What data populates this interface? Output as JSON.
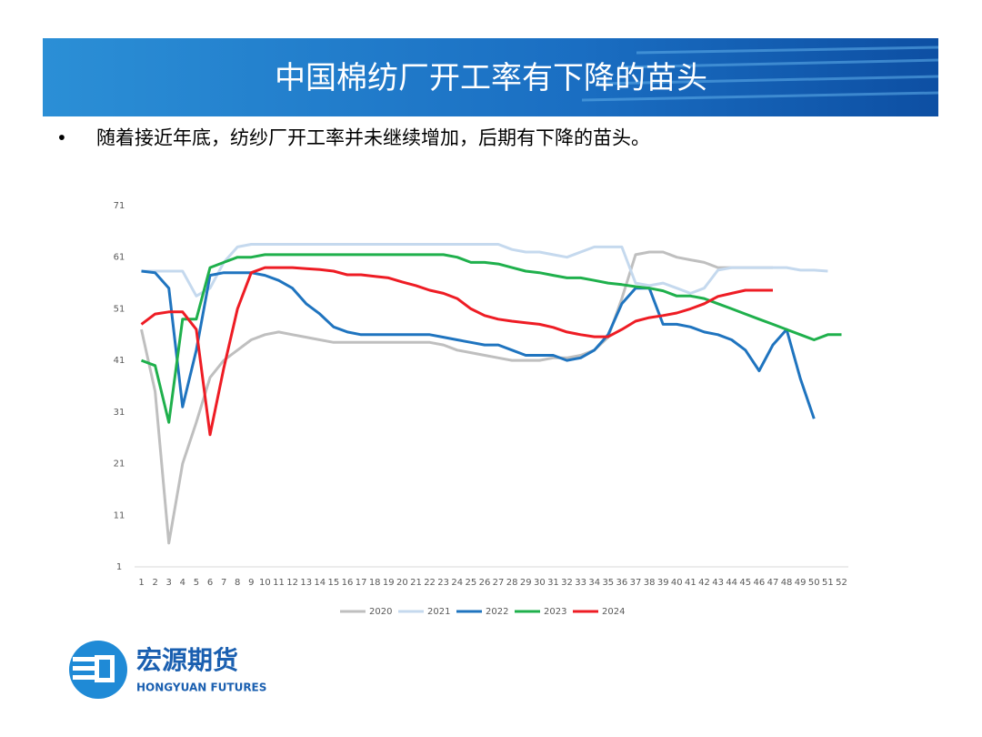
{
  "header": {
    "title": "中国棉纺厂开工率有下降的苗头"
  },
  "bullet": "随着接近年底，纺纱厂开工率并未继续增加，后期有下降的苗头。",
  "logo": {
    "name": "宏源期货",
    "english": "HONGYUAN FUTURES"
  },
  "chart_data": {
    "type": "line",
    "categories": [
      1,
      2,
      3,
      4,
      5,
      6,
      7,
      8,
      9,
      10,
      11,
      12,
      13,
      14,
      15,
      16,
      17,
      18,
      19,
      20,
      21,
      22,
      23,
      24,
      25,
      26,
      27,
      28,
      29,
      30,
      31,
      32,
      33,
      34,
      35,
      36,
      37,
      38,
      39,
      40,
      41,
      42,
      43,
      44,
      45,
      46,
      47,
      48,
      49,
      50,
      51,
      52
    ],
    "ylim": [
      1,
      71
    ],
    "yticks": [
      1,
      11,
      21,
      31,
      41,
      51,
      61,
      71
    ],
    "grid": false,
    "legend": "bottom",
    "series": [
      {
        "name": "2020",
        "color": "#bfbfbf",
        "values": [
          47,
          35,
          5.6,
          21,
          29,
          37.7,
          41,
          43,
          45,
          46,
          46.5,
          46,
          45.5,
          45,
          44.5,
          44.5,
          44.5,
          44.5,
          44.5,
          44.5,
          44.5,
          44.5,
          44,
          43,
          42.5,
          42,
          41.5,
          41,
          41,
          41,
          41.5,
          41.5,
          42,
          43,
          45.5,
          53,
          61.5,
          62,
          62,
          61,
          60.5,
          60,
          59,
          59,
          59,
          59,
          59,
          null,
          null,
          null,
          null,
          null
        ]
      },
      {
        "name": "2021",
        "color": "#c5d9ee",
        "values": [
          58.3,
          58.3,
          58.3,
          58.3,
          53.5,
          55,
          60,
          63,
          63.5,
          63.5,
          63.5,
          63.5,
          63.5,
          63.5,
          63.5,
          63.5,
          63.5,
          63.5,
          63.5,
          63.5,
          63.5,
          63.5,
          63.5,
          63.5,
          63.5,
          63.5,
          63.5,
          62.5,
          62,
          62,
          61.5,
          61,
          62,
          63,
          63,
          63,
          56,
          55.5,
          56,
          55,
          54,
          55,
          58.5,
          59,
          59,
          59,
          59,
          59,
          58.5,
          58.5,
          58.3,
          null
        ]
      },
      {
        "name": "2022",
        "color": "#1f74bf",
        "values": [
          58.3,
          58,
          55,
          32,
          43,
          57.5,
          58,
          58,
          58,
          57.5,
          56.5,
          55,
          52,
          50,
          47.5,
          46.5,
          46,
          46,
          46,
          46,
          46,
          46,
          45.5,
          45,
          44.5,
          44,
          44,
          43,
          42,
          42,
          42,
          41,
          41.5,
          43,
          46,
          52,
          55,
          55,
          48,
          48,
          47.5,
          46.5,
          46,
          45,
          43,
          39,
          44,
          47,
          37.5,
          29.7,
          null,
          null
        ]
      },
      {
        "name": "2023",
        "color": "#1fb04c",
        "values": [
          41,
          40,
          29,
          49,
          49,
          59,
          60,
          61,
          61,
          61.5,
          61.5,
          61.5,
          61.5,
          61.5,
          61.5,
          61.5,
          61.5,
          61.5,
          61.5,
          61.5,
          61.5,
          61.5,
          61.5,
          61,
          60,
          60,
          59.7,
          59,
          58.3,
          58,
          57.5,
          57,
          57,
          56.5,
          56,
          55.7,
          55.3,
          55,
          54.5,
          53.5,
          53.5,
          53,
          52,
          51,
          50,
          49,
          48,
          47,
          46,
          45,
          46,
          46
        ]
      },
      {
        "name": "2024",
        "color": "#ee1c24",
        "values": [
          48,
          50,
          50.4,
          50.4,
          47,
          26.6,
          39.5,
          51,
          58,
          59,
          59,
          59,
          58.8,
          58.6,
          58.3,
          57.6,
          57.6,
          57.3,
          57,
          56.2,
          55.5,
          54.6,
          54,
          53,
          51,
          49.7,
          49,
          48.6,
          48.3,
          48,
          47.4,
          46.5,
          46,
          45.6,
          45.6,
          47,
          48.6,
          49.3,
          49.7,
          50.2,
          51,
          52,
          53.4,
          54,
          54.6,
          54.6,
          54.6,
          null,
          null,
          null,
          null,
          null
        ]
      }
    ]
  }
}
